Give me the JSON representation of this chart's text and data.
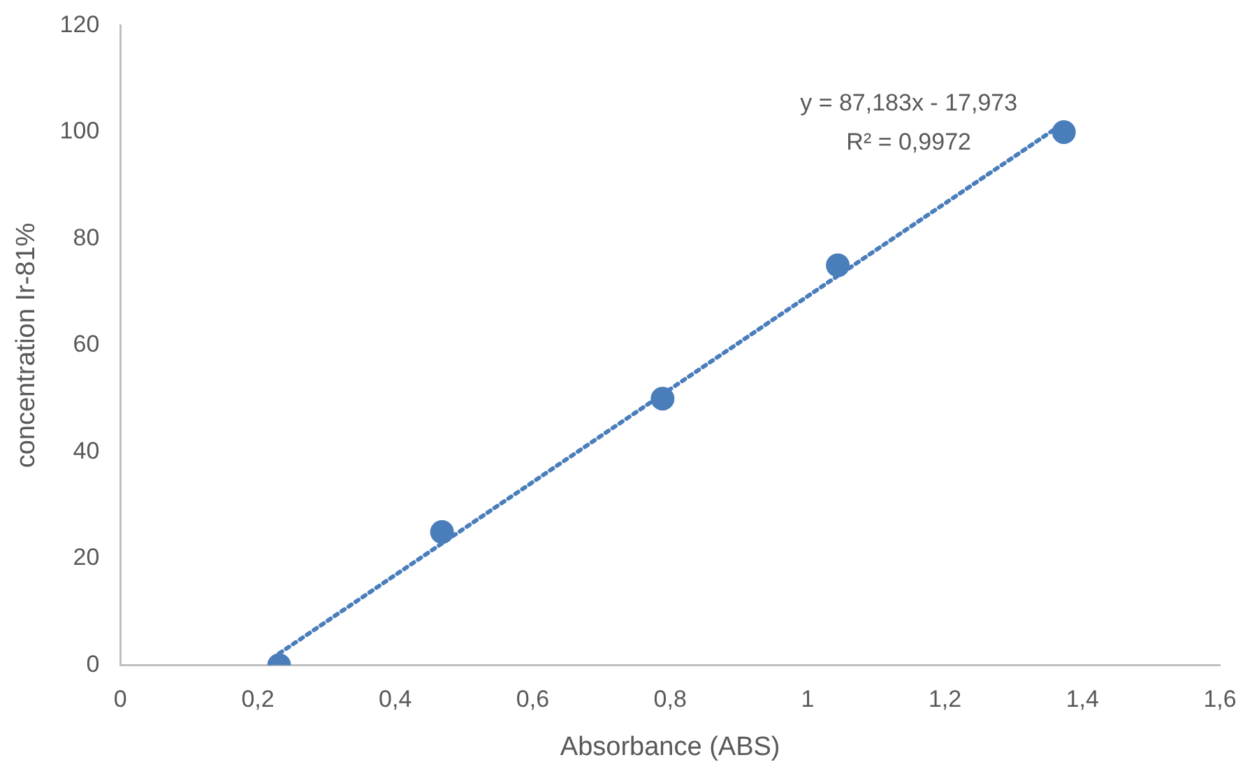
{
  "chart_data": {
    "type": "scatter",
    "xlabel": "Absorbance (ABS)",
    "ylabel": "concentration Ir-81%",
    "annotations": [
      "y = 87,183x - 17,973",
      "R² = 0,9972"
    ],
    "xlim": [
      0,
      1.6
    ],
    "ylim": [
      0,
      120
    ],
    "xticks": [
      0,
      {
        "value": 0.2,
        "label": "0,2"
      },
      {
        "value": 0.4,
        "label": "0,4"
      },
      {
        "value": 0.6,
        "label": "0,6"
      },
      {
        "value": 0.8,
        "label": "0,8"
      },
      1,
      {
        "value": 1.2,
        "label": "1,2"
      },
      {
        "value": 1.4,
        "label": "1,4"
      },
      {
        "value": 1.6,
        "label": "1,6"
      }
    ],
    "yticks": [
      0,
      20,
      40,
      60,
      80,
      100,
      120
    ],
    "series": [
      {
        "type": "scatter",
        "color": "#4a7ebb",
        "marker": "circle",
        "x": [
          0.231,
          0.468,
          0.789,
          1.044,
          1.373
        ],
        "values": [
          0,
          25,
          50,
          75,
          100
        ]
      },
      {
        "type": "line",
        "color": "#4a7ebb",
        "marker": "none",
        "line_style": "dotted",
        "x": [
          0.231,
          1.373
        ],
        "values": [
          2.2,
          101.7
        ]
      }
    ]
  }
}
